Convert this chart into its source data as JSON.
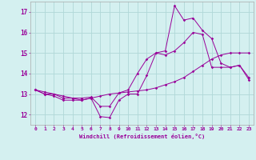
{
  "title": "",
  "xlabel": "Windchill (Refroidissement éolien,°C)",
  "ylabel": "",
  "background_color": "#d4f0f0",
  "grid_color": "#b0d8d8",
  "line_color": "#990099",
  "xlim": [
    -0.5,
    23.5
  ],
  "ylim": [
    11.5,
    17.5
  ],
  "yticks": [
    12,
    13,
    14,
    15,
    16,
    17
  ],
  "xticks": [
    0,
    1,
    2,
    3,
    4,
    5,
    6,
    7,
    8,
    9,
    10,
    11,
    12,
    13,
    14,
    15,
    16,
    17,
    18,
    19,
    20,
    21,
    22,
    23
  ],
  "series": [
    [
      13.2,
      13.1,
      13.0,
      12.9,
      12.8,
      12.7,
      12.8,
      12.9,
      13.0,
      13.05,
      13.1,
      13.15,
      13.2,
      13.3,
      13.45,
      13.6,
      13.8,
      14.1,
      14.4,
      14.7,
      14.9,
      15.0,
      15.0,
      15.0
    ],
    [
      13.2,
      13.0,
      12.9,
      12.7,
      12.7,
      12.7,
      12.8,
      11.9,
      11.85,
      12.7,
      13.0,
      13.0,
      13.9,
      15.0,
      14.9,
      15.1,
      15.5,
      16.0,
      15.9,
      14.3,
      14.3,
      14.3,
      14.4,
      13.7
    ],
    [
      13.2,
      13.0,
      13.0,
      12.8,
      12.8,
      12.8,
      12.85,
      12.4,
      12.4,
      13.05,
      13.2,
      14.0,
      14.7,
      15.0,
      15.1,
      17.3,
      16.6,
      16.7,
      16.1,
      15.7,
      14.5,
      14.3,
      14.4,
      13.8
    ]
  ]
}
